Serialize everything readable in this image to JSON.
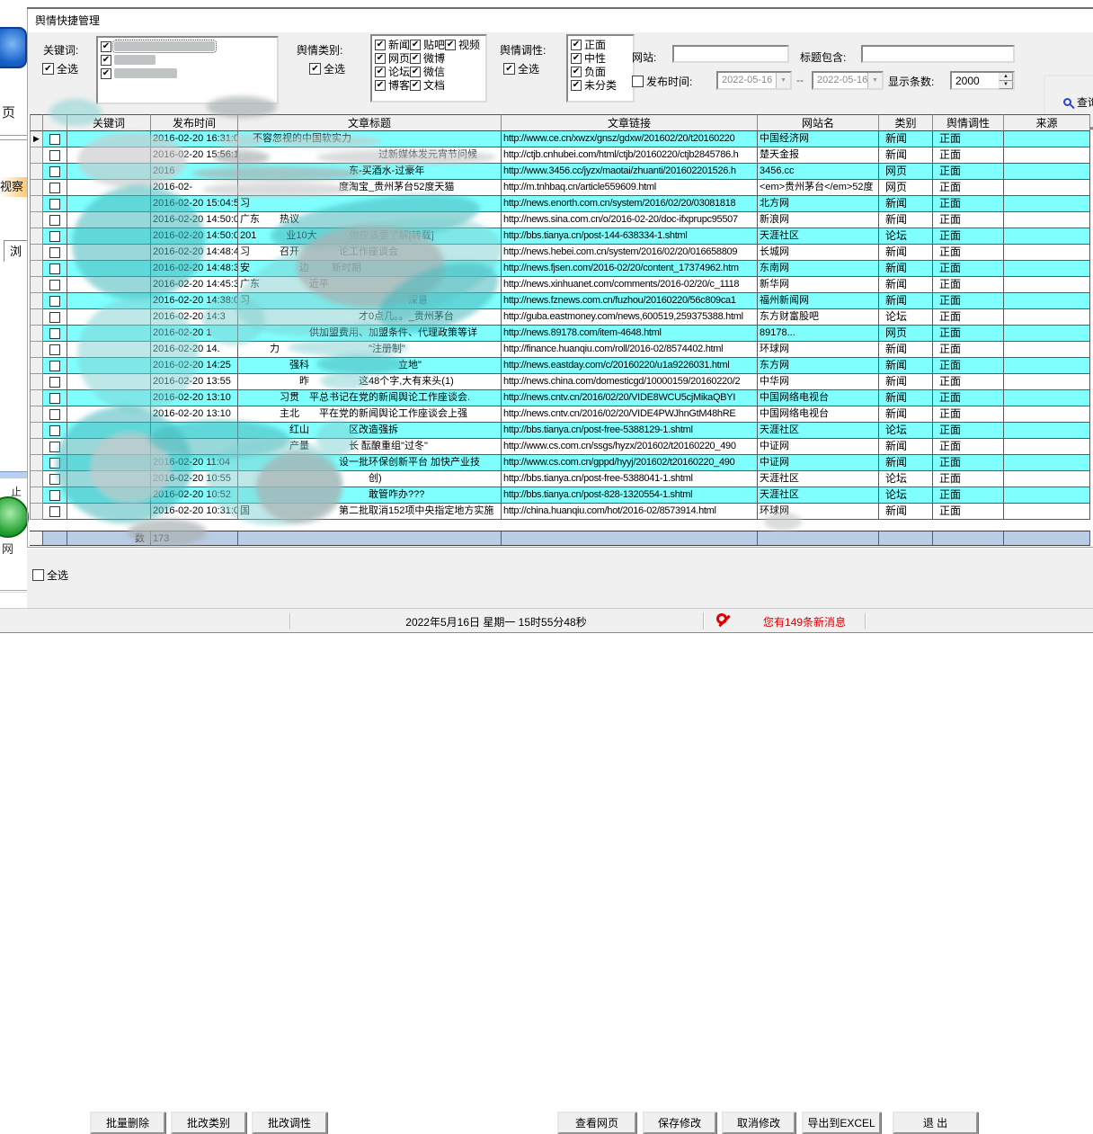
{
  "window": {
    "title": "舆情快捷管理"
  },
  "background_app": {
    "page": "页",
    "observe": "视察",
    "browse": "浏",
    "stop": "止",
    "net": "网"
  },
  "filters": {
    "keyword_label": "关键词:",
    "keyword_select_all": "全选",
    "keyword_items": [
      {
        "checked": true
      },
      {
        "checked": true
      },
      {
        "checked": true
      }
    ],
    "category_label": "舆情类别:",
    "category_select_all": "全选",
    "categories": [
      {
        "label": "新闻",
        "checked": true
      },
      {
        "label": "网页",
        "checked": true
      },
      {
        "label": "论坛",
        "checked": true
      },
      {
        "label": "博客",
        "checked": true
      },
      {
        "label": "贴吧",
        "checked": true
      },
      {
        "label": "微博",
        "checked": true
      },
      {
        "label": "微信",
        "checked": true
      },
      {
        "label": "文档",
        "checked": true
      },
      {
        "label": "视频",
        "checked": true
      }
    ],
    "tonality_label": "舆情调性:",
    "tonality_select_all": "全选",
    "tonalities": [
      {
        "label": "正面",
        "checked": true
      },
      {
        "label": "中性",
        "checked": true
      },
      {
        "label": "负面",
        "checked": true
      },
      {
        "label": "未分类",
        "checked": true
      }
    ],
    "site_label": "网站:",
    "site_value": "",
    "title_contains_label": "标题包含:",
    "title_contains_value": "",
    "publish_label": "发布时间:",
    "publish_checked": false,
    "date_from": "2022-05-16",
    "date_separator": "--",
    "date_to": "2022-05-16",
    "count_label": "显示条数:",
    "count_value": "2000",
    "query_button": "查询"
  },
  "grid": {
    "headers": [
      "",
      "",
      "关键词",
      "发布时间",
      "文章标题",
      "文章链接",
      "网站名",
      "类别",
      "舆情调性",
      "来源"
    ],
    "rows": [
      {
        "date": "2016-02-20 16:31:0",
        "title": "　 不容忽视的中国软实力",
        "link": "http://www.ce.cn/xwzx/gnsz/gdxw/201602/20/t20160220",
        "site": "中国经济网",
        "category": "新闻",
        "tonality": "正面",
        "source": ""
      },
      {
        "date": "2016-02-20 15:56:1",
        "title": "　　　　　　　　　　　　　　过新媒体发元宵节问候",
        "link": "http://ctjb.cnhubei.com/html/ctjb/20160220/ctjb2845786.h",
        "site": "楚天金报",
        "category": "新闻",
        "tonality": "正面",
        "source": ""
      },
      {
        "date": "2016",
        "title": "　　　　　　　　　　　东-买酒水-过豪年",
        "link": "http://www.3456.cc/jyzx/maotai/zhuanti/201602201526.h",
        "site": "3456.cc",
        "category": "网页",
        "tonality": "正面",
        "source": ""
      },
      {
        "date": "2016-02-",
        "title": "　　　　　　　　　　度淘宝_贵州茅台52度天猫",
        "link": "http://m.tnhbaq.cn/article559609.html",
        "site": "<em>贵州茅台</em>52度",
        "category": "网页",
        "tonality": "正面",
        "source": ""
      },
      {
        "date": "2016-02-20 15:04:51",
        "title": "习",
        "link": "http://news.enorth.com.cn/system/2016/02/20/03081818",
        "site": "北方网",
        "category": "新闻",
        "tonality": "正面",
        "source": ""
      },
      {
        "date": "2016-02-20 14:50:07",
        "title": "广东　　热议",
        "link": "http://news.sina.com.cn/o/2016-02-20/doc-ifxprupc95507",
        "site": "新浪网",
        "category": "新闻",
        "tonality": "正面",
        "source": ""
      },
      {
        "date": "2016-02-20 14:50:00",
        "title": "201　　　业10大　　　 你应该要了解[转载]",
        "link": "http://bbs.tianya.cn/post-144-638334-1.shtml",
        "site": "天涯社区",
        "category": "论坛",
        "tonality": "正面",
        "source": ""
      },
      {
        "date": "2016-02-20 14:48:40",
        "title": "习　　　召开　　　　论工作座谈会",
        "link": "http://news.hebei.com.cn/system/2016/02/20/016658809",
        "site": "长城网",
        "category": "新闻",
        "tonality": "正面",
        "source": ""
      },
      {
        "date": "2016-02-20 14:48:32",
        "title": "安　　　　　边　　 新时期",
        "link": "http://news.fjsen.com/2016-02/20/content_17374962.htm",
        "site": "东南网",
        "category": "新闻",
        "tonality": "正面",
        "source": ""
      },
      {
        "date": "2016-02-20 14:45:33",
        "title": "广东　　　　　近平",
        "link": "http://news.xinhuanet.com/comments/2016-02/20/c_1118",
        "site": "新华网",
        "category": "新闻",
        "tonality": "正面",
        "source": ""
      },
      {
        "date": "2016-02-20 14:38:02",
        "title": "习　　　　　　　　　　　　　　　　深意",
        "link": "http://news.fznews.com.cn/fuzhou/20160220/56c809ca1",
        "site": "福州新闻网",
        "category": "新闻",
        "tonality": "正面",
        "source": ""
      },
      {
        "date": "2016-02-20 14:3",
        "title": "　　　　　　　　　　　　才0点几。。_贵州茅台",
        "link": "http://guba.eastmoney.com/news,600519,259375388.html",
        "site": "东方财富股吧",
        "category": "论坛",
        "tonality": "正面",
        "source": ""
      },
      {
        "date": "2016-02-20 1",
        "title": "　　　　　　　供加盟费用、加盟条件、代理政策等详",
        "link": "http://news.89178.com/item-4648.html",
        "site": "89178...",
        "category": "网页",
        "tonality": "正面",
        "source": ""
      },
      {
        "date": "2016-02-20 14.",
        "title": "　　　力　　　　　　　　　\"注册制\"",
        "link": "http://finance.huanqiu.com/roll/2016-02/8574402.html",
        "site": "环球网",
        "category": "新闻",
        "tonality": "正面",
        "source": ""
      },
      {
        "date": "2016-02-20 14:25",
        "title": "　　　　　强科　　　　　　　　　立地\"",
        "link": "http://news.eastday.com/c/20160220/u1a9226031.html",
        "site": "东方网",
        "category": "新闻",
        "tonality": "正面",
        "source": ""
      },
      {
        "date": "2016-02-20 13:55",
        "title": "　　　　　　昨　　　　　这48个字,大有来头(1)",
        "link": "http://news.china.com/domesticgd/10000159/20160220/2",
        "site": "中华网",
        "category": "新闻",
        "tonality": "正面",
        "source": ""
      },
      {
        "date": "2016-02-20 13:10",
        "title": "　　　　习贯　平总书记在党的新闻舆论工作座谈会.",
        "link": "http://news.cntv.cn/2016/02/20/VIDE8WCU5cjMikaQBYI",
        "site": "中国网络电视台",
        "category": "新闻",
        "tonality": "正面",
        "source": ""
      },
      {
        "date": "2016-02-20 13:10",
        "title": "　　　　主北　　平在党的新闻舆论工作座谈会上强",
        "link": "http://news.cntv.cn/2016/02/20/VIDE4PWJhnGtM48hRE",
        "site": "中国网络电视台",
        "category": "新闻",
        "tonality": "正面",
        "source": ""
      },
      {
        "date": "",
        "title": "　　　　　红山　　　　区改造强拆",
        "link": "http://bbs.tianya.cn/post-free-5388129-1.shtml",
        "site": "天涯社区",
        "category": "论坛",
        "tonality": "正面",
        "source": ""
      },
      {
        "date": "",
        "title": "　　　　　产量　　　　长 酝酿重组\"过冬\"",
        "link": "http://www.cs.com.cn/ssgs/hyzx/201602/t20160220_490",
        "site": "中证网",
        "category": "新闻",
        "tonality": "正面",
        "source": ""
      },
      {
        "date": "2016-02-20 11:04",
        "title": "　　　　　　　　　　设一批环保创新平台 加快产业技",
        "link": "http://www.cs.com.cn/gppd/hyyj/201602/t20160220_490",
        "site": "中证网",
        "category": "新闻",
        "tonality": "正面",
        "source": ""
      },
      {
        "date": "2016-02-20 10:55",
        "title": "　　　　　　　　　　　　　创)",
        "link": "http://bbs.tianya.cn/post-free-5388041-1.shtml",
        "site": "天涯社区",
        "category": "论坛",
        "tonality": "正面",
        "source": ""
      },
      {
        "date": "2016-02-20 10:52",
        "title": "　　　　　　　　　　　　　敢管咋办???",
        "link": "http://bbs.tianya.cn/post-828-1320554-1.shtml",
        "site": "天涯社区",
        "category": "论坛",
        "tonality": "正面",
        "source": ""
      },
      {
        "date": "2016-02-20 10:31:00",
        "title": "国　　　　　　　　　第二批取消152项中央指定地方实施",
        "link": "http://china.huanqiu.com/hot/2016-02/8573914.html",
        "site": "环球网",
        "category": "新闻",
        "tonality": "正面",
        "source": ""
      }
    ],
    "summary": {
      "label": "数",
      "total": "173"
    }
  },
  "footer": {
    "select_all": "全选",
    "batch_delete": "批量删除",
    "batch_category": "批改类别",
    "batch_tonality": "批改调性",
    "view_page": "查看网页",
    "save": "保存修改",
    "cancel": "取消修改",
    "export": "导出到EXCEL",
    "exit": "退  出"
  },
  "statusbar": {
    "datetime": "2022年5月16日  星期一   15时55分48秒",
    "message": "您有149条新消息"
  },
  "colors": {
    "row_highlight": "#80ffff",
    "summary_row": "#b9cde6",
    "message_text": "#dd0000",
    "panel": "#f0f0f0"
  }
}
